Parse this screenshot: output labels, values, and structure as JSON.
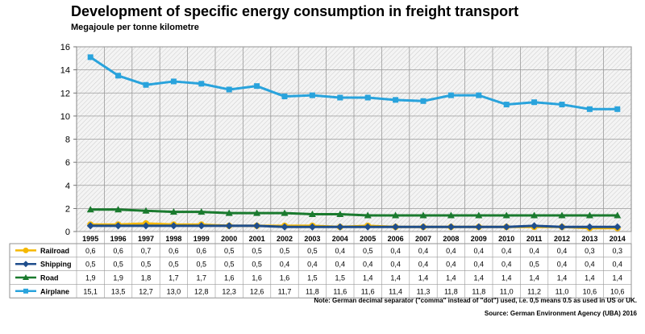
{
  "chart_data": {
    "type": "line",
    "title": "Development of specific energy consumption in freight transport",
    "subtitle": "Megajoule per tonne kilometre",
    "ylim": [
      0,
      16
    ],
    "yticks": [
      "0",
      "2",
      "4",
      "6",
      "8",
      "10",
      "12",
      "14",
      "16"
    ],
    "grid": true,
    "categories": [
      "1995",
      "1996",
      "1997",
      "1998",
      "1999",
      "2000",
      "2001",
      "2002",
      "2003",
      "2004",
      "2005",
      "2006",
      "2007",
      "2008",
      "2009",
      "2010",
      "2011",
      "2012",
      "2013",
      "2014"
    ],
    "series": [
      {
        "name": "Railroad",
        "color": "#f5b800",
        "marker": "circle",
        "values": [
          0.6,
          0.6,
          0.7,
          0.6,
          0.6,
          0.5,
          0.5,
          0.5,
          0.5,
          0.4,
          0.5,
          0.4,
          0.4,
          0.4,
          0.4,
          0.4,
          0.4,
          0.4,
          0.3,
          0.3
        ],
        "labels": [
          "0,6",
          "0,6",
          "0,7",
          "0,6",
          "0,6",
          "0,5",
          "0,5",
          "0,5",
          "0,5",
          "0,4",
          "0,5",
          "0,4",
          "0,4",
          "0,4",
          "0,4",
          "0,4",
          "0,4",
          "0,4",
          "0,3",
          "0,3"
        ]
      },
      {
        "name": "Shipping",
        "color": "#1f4e8c",
        "marker": "diamond",
        "values": [
          0.5,
          0.5,
          0.5,
          0.5,
          0.5,
          0.5,
          0.5,
          0.4,
          0.4,
          0.4,
          0.4,
          0.4,
          0.4,
          0.4,
          0.4,
          0.4,
          0.5,
          0.4,
          0.4,
          0.4
        ],
        "labels": [
          "0,5",
          "0,5",
          "0,5",
          "0,5",
          "0,5",
          "0,5",
          "0,5",
          "0,4",
          "0,4",
          "0,4",
          "0,4",
          "0,4",
          "0,4",
          "0,4",
          "0,4",
          "0,4",
          "0,5",
          "0,4",
          "0,4",
          "0,4"
        ]
      },
      {
        "name": "Road",
        "color": "#1a7a2e",
        "marker": "triangle",
        "values": [
          1.9,
          1.9,
          1.8,
          1.7,
          1.7,
          1.6,
          1.6,
          1.6,
          1.5,
          1.5,
          1.4,
          1.4,
          1.4,
          1.4,
          1.4,
          1.4,
          1.4,
          1.4,
          1.4,
          1.4
        ],
        "labels": [
          "1,9",
          "1,9",
          "1,8",
          "1,7",
          "1,7",
          "1,6",
          "1,6",
          "1,6",
          "1,5",
          "1,5",
          "1,4",
          "1,4",
          "1,4",
          "1,4",
          "1,4",
          "1,4",
          "1,4",
          "1,4",
          "1,4",
          "1,4"
        ]
      },
      {
        "name": "Airplane",
        "color": "#29a3dc",
        "marker": "square",
        "values": [
          15.1,
          13.5,
          12.7,
          13.0,
          12.8,
          12.3,
          12.6,
          11.7,
          11.8,
          11.6,
          11.6,
          11.4,
          11.3,
          11.8,
          11.8,
          11.0,
          11.2,
          11.0,
          10.6,
          10.6
        ],
        "labels": [
          "15,1",
          "13,5",
          "12,7",
          "13,0",
          "12,8",
          "12,3",
          "12,6",
          "11,7",
          "11,8",
          "11,6",
          "11,6",
          "11,4",
          "11,3",
          "11,8",
          "11,8",
          "11,0",
          "11,2",
          "11,0",
          "10,6",
          "10,6"
        ]
      }
    ],
    "note": "Note: German decimal separator (\"comma\" instead of \"dot\") used, i.e. 0,5 means 0.5 as used in US or UK.",
    "source": "Source: German Environment Agency (UBA) 2016"
  }
}
